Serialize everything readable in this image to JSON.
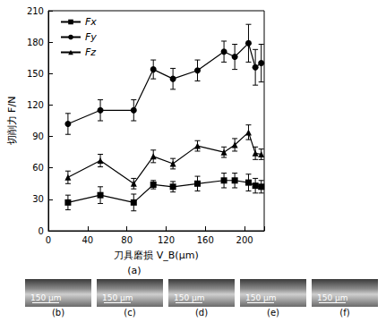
{
  "chart_data": {
    "type": "line",
    "x_label": "刀具磨损 V_B(μm)",
    "y_label": "切削力 F/N",
    "x": [
      20,
      53,
      87,
      107,
      127,
      152,
      179,
      190,
      204,
      211,
      217
    ],
    "series": [
      {
        "name": "Fx",
        "color": "#000000",
        "marker": "square",
        "values": [
          27,
          34,
          27,
          44,
          42,
          45,
          48,
          48,
          46,
          43,
          42
        ],
        "errors": [
          7,
          8,
          8,
          4,
          5,
          7,
          7,
          7,
          8,
          7,
          6
        ]
      },
      {
        "name": "Fy",
        "color": "#000000",
        "marker": "circle",
        "values": [
          102,
          115,
          115,
          154,
          145,
          153,
          171,
          166,
          179,
          156,
          160
        ],
        "errors": [
          10,
          10,
          10,
          9,
          10,
          10,
          10,
          12,
          18,
          17,
          18
        ]
      },
      {
        "name": "Fz",
        "color": "#000000",
        "marker": "triangle",
        "values": [
          51,
          67,
          45,
          71,
          64,
          81,
          75,
          82,
          94,
          74,
          73
        ],
        "errors": [
          6,
          6,
          5,
          6,
          5,
          5,
          5,
          6,
          7,
          6,
          5
        ]
      }
    ],
    "xlim": [
      0,
      220
    ],
    "xticks": [
      0,
      40,
      80,
      120,
      160,
      200
    ],
    "ylim": [
      0,
      210
    ],
    "yticks": [
      0,
      30,
      60,
      90,
      120,
      150,
      180,
      210
    ],
    "legend": "upper left",
    "grid": false
  },
  "figure_label": "(a)",
  "panels": [
    {
      "label": "(b)",
      "scale_bar": "150 μm"
    },
    {
      "label": "(c)",
      "scale_bar": "150 μm"
    },
    {
      "label": "(d)",
      "scale_bar": "150 μm"
    },
    {
      "label": "(e)",
      "scale_bar": "150 μm"
    },
    {
      "label": "(f)",
      "scale_bar": "150 μm"
    }
  ]
}
